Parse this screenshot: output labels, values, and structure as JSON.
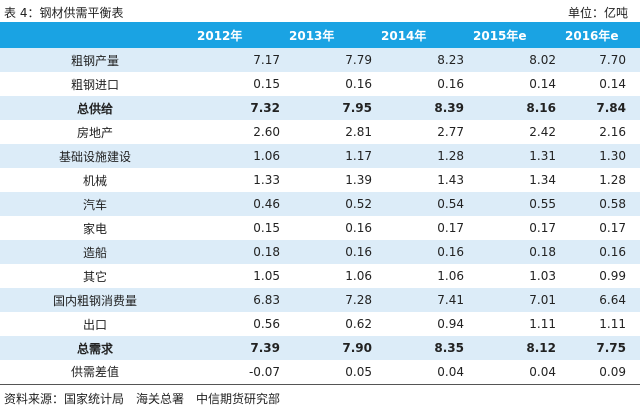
{
  "title": "表 4：钢材供需平衡表",
  "unit": "单位：亿吨",
  "table": {
    "header": [
      "2012年",
      "2013年",
      "2014年",
      "2015年e",
      "2016年e"
    ],
    "rows": [
      [
        "粗钢产量",
        "7.17",
        "7.79",
        "8.23",
        "8.02",
        "7.70"
      ],
      [
        "粗钢进口",
        "0.15",
        "0.16",
        "0.16",
        "0.14",
        "0.14"
      ],
      [
        "总供给",
        "7.32",
        "7.95",
        "8.39",
        "8.16",
        "7.84"
      ],
      [
        "房地产",
        "2.60",
        "2.81",
        "2.77",
        "2.42",
        "2.16"
      ],
      [
        "基础设施建设",
        "1.06",
        "1.17",
        "1.28",
        "1.31",
        "1.30"
      ],
      [
        "机械",
        "1.33",
        "1.39",
        "1.43",
        "1.34",
        "1.28"
      ],
      [
        "汽车",
        "0.46",
        "0.52",
        "0.54",
        "0.55",
        "0.58"
      ],
      [
        "家电",
        "0.15",
        "0.16",
        "0.17",
        "0.17",
        "0.17"
      ],
      [
        "造船",
        "0.18",
        "0.16",
        "0.16",
        "0.18",
        "0.16"
      ],
      [
        "其它",
        "1.05",
        "1.06",
        "1.06",
        "1.03",
        "0.99"
      ],
      [
        "国内粗钢消费量",
        "6.83",
        "7.28",
        "7.41",
        "7.01",
        "6.64"
      ],
      [
        "出口",
        "0.56",
        "0.62",
        "0.94",
        "1.11",
        "1.11"
      ],
      [
        "总需求",
        "7.39",
        "7.90",
        "8.35",
        "8.12",
        "7.75"
      ],
      [
        "供需差值",
        "-0.07",
        "0.05",
        "0.04",
        "0.04",
        "0.09"
      ]
    ],
    "bold_rows": [
      2,
      12
    ]
  },
  "source": "资料来源：国家统计局　海关总署　中信期货研究部"
}
